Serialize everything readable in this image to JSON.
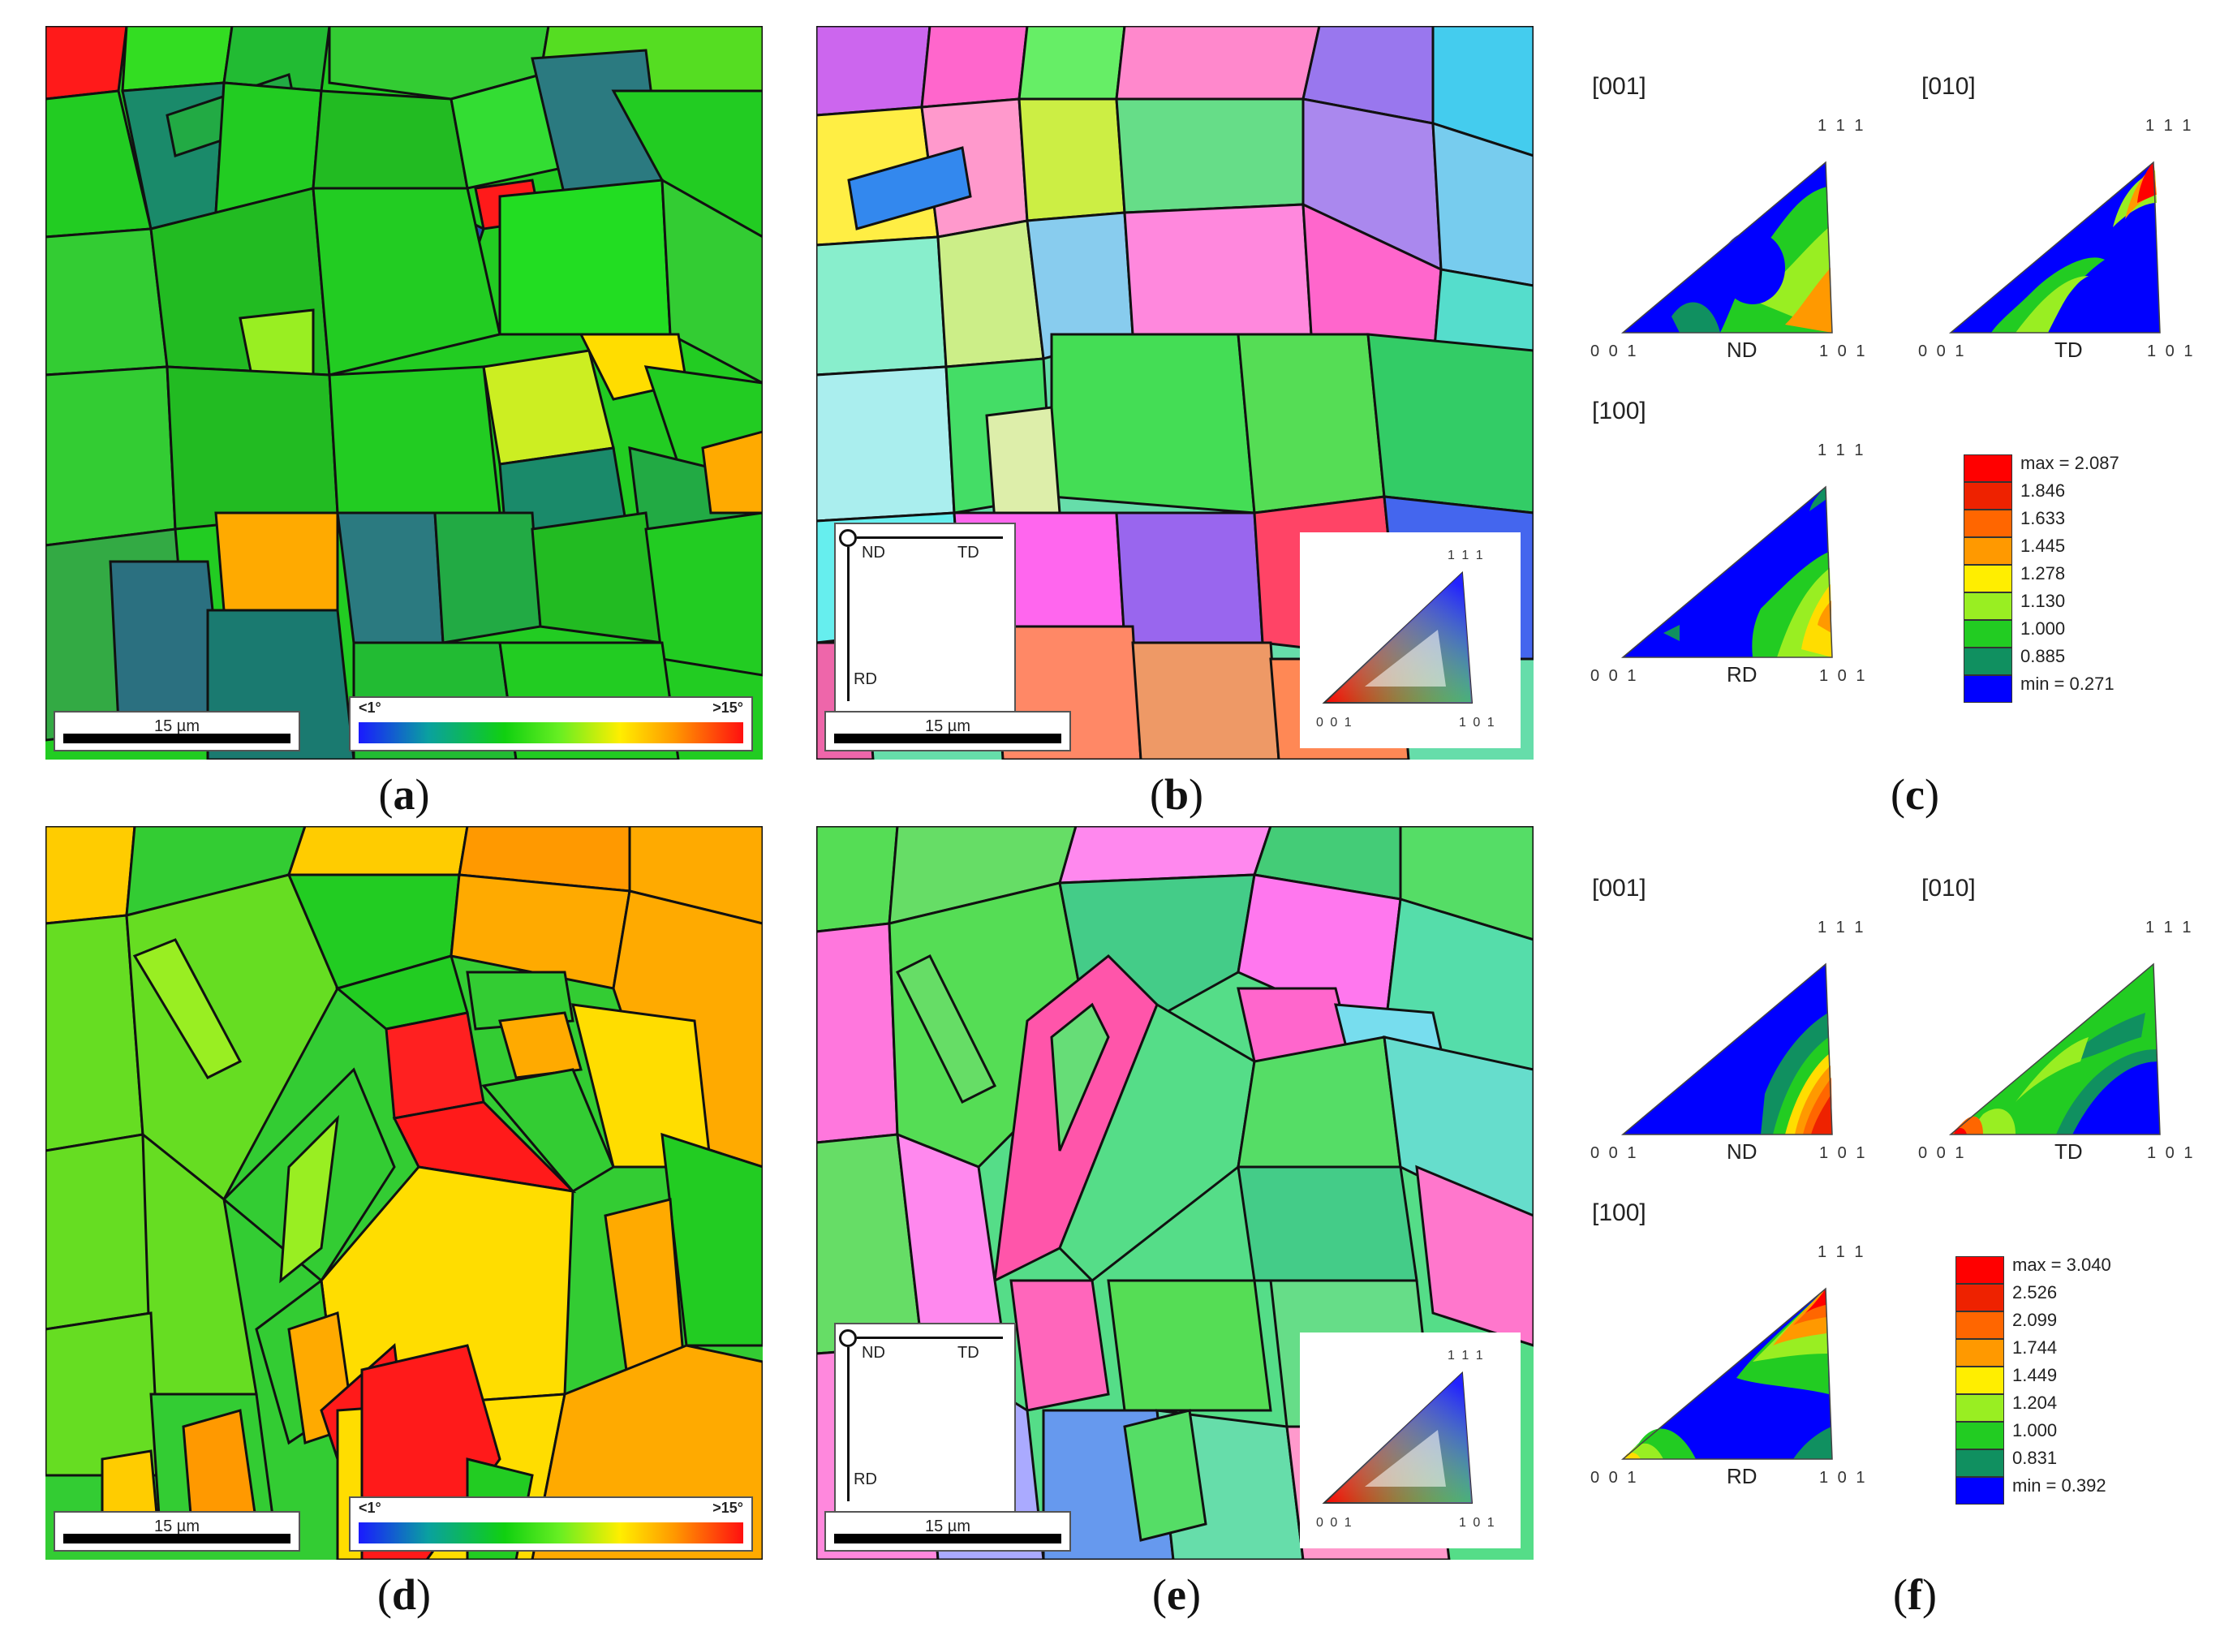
{
  "figure": {
    "panels": [
      {
        "id": "a",
        "label": "a",
        "type": "misorientation-map",
        "scale_text": "15 µm",
        "key_low": "<1°",
        "key_high": ">15°"
      },
      {
        "id": "b",
        "label": "b",
        "type": "ipf-orientation-map",
        "scale_text": "15 µm",
        "axes": {
          "nd": "ND",
          "td": "TD",
          "rd": "RD"
        },
        "key_corners": {
          "top": "1 1 1",
          "left": "0 0 1",
          "right": "1 0 1"
        }
      },
      {
        "id": "c",
        "label": "c",
        "type": "inverse-pole-figures",
        "figures": [
          {
            "title": "[001]",
            "axis": "ND"
          },
          {
            "title": "[010]",
            "axis": "TD"
          },
          {
            "title": "[100]",
            "axis": "RD"
          }
        ],
        "corners": {
          "top": "1 1 1",
          "left": "0 0 1",
          "right": "1 0 1"
        },
        "legend": [
          "max = 2.087",
          "1.846",
          "1.633",
          "1.445",
          "1.278",
          "1.130",
          "1.000",
          "0.885",
          "min = 0.271"
        ]
      },
      {
        "id": "d",
        "label": "d",
        "type": "misorientation-map",
        "scale_text": "15 µm",
        "key_low": "<1°",
        "key_high": ">15°"
      },
      {
        "id": "e",
        "label": "e",
        "type": "ipf-orientation-map",
        "scale_text": "15 µm",
        "axes": {
          "nd": "ND",
          "td": "TD",
          "rd": "RD"
        },
        "key_corners": {
          "top": "1 1 1",
          "left": "0 0 1",
          "right": "1 0 1"
        }
      },
      {
        "id": "f",
        "label": "f",
        "type": "inverse-pole-figures",
        "figures": [
          {
            "title": "[001]",
            "axis": "ND"
          },
          {
            "title": "[010]",
            "axis": "TD"
          },
          {
            "title": "[100]",
            "axis": "RD"
          }
        ],
        "corners": {
          "top": "1 1 1",
          "left": "0 0 1",
          "right": "1 0 1"
        },
        "legend": [
          "max = 3.040",
          "2.526",
          "2.099",
          "1.744",
          "1.449",
          "1.204",
          "1.000",
          "0.831",
          "min = 0.392"
        ]
      }
    ],
    "legend_colors": [
      "#ff0000",
      "#ee2200",
      "#ff6600",
      "#ff9900",
      "#ffee00",
      "#99ee22",
      "#22cc22",
      "#109060",
      "#0000ff"
    ]
  }
}
